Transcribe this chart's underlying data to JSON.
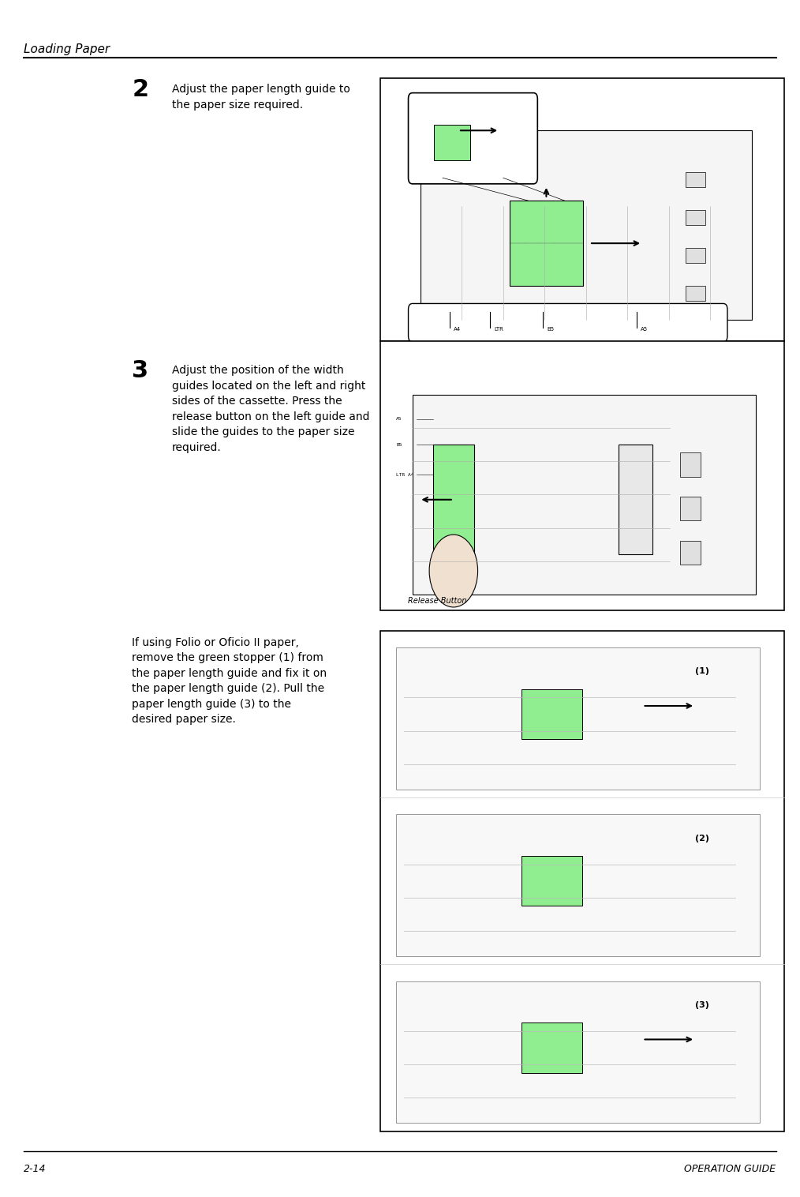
{
  "page_width": 10.14,
  "page_height": 15.16,
  "bg_color": "#ffffff",
  "header_text": "Loading Paper",
  "footer_left": "2-14",
  "footer_right": "OPERATION GUIDE",
  "font_family": "DejaVu Sans",
  "step2_number": "2",
  "step2_text": "Adjust the paper length guide to\nthe paper size required.",
  "step3_number": "3",
  "step3_text": "Adjust the position of the width\nguides located on the left and right\nsides of the cassette. Press the\nrelease button on the left guide and\nslide the guides to the paper size\nrequired.",
  "step3_caption": "Release Button",
  "folio_text": "If using Folio or Oficio II paper,\nremove the green stopper (1) from\nthe paper length guide and fix it on\nthe paper length guide (2). Pull the\npaper length guide (3) to the\ndesired paper size.",
  "label1": "(1)",
  "label2": "(2)",
  "label3": "(3)",
  "green_color": "#8fbc8f",
  "light_green": "#90EE90",
  "line_color": "#000000",
  "box_border": "#000000",
  "gray_light": "#d3d3d3",
  "gray_mid": "#a0a0a0",
  "step_num_size": 22,
  "body_text_size": 10,
  "header_size": 11,
  "footer_size": 9
}
